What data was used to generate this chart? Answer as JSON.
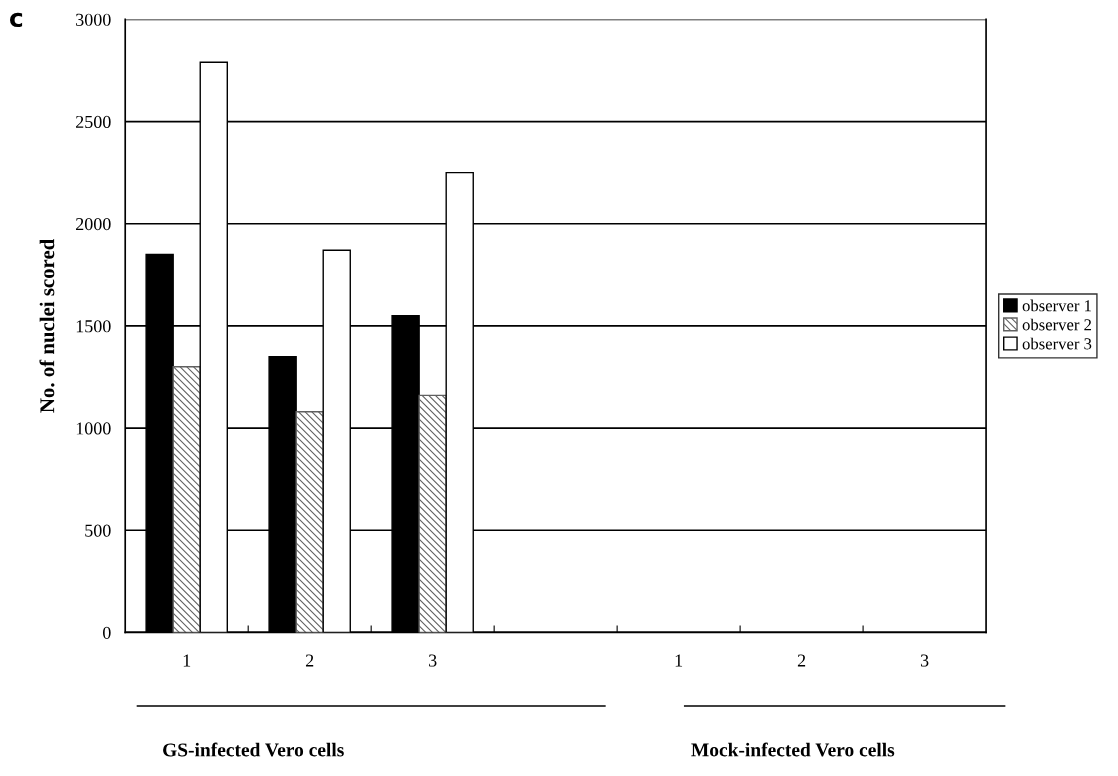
{
  "chart_data": {
    "type": "bar",
    "ylabel": "No. of nuclei scored",
    "categories": [
      "1",
      "2",
      "3",
      null,
      "1",
      "2",
      "3"
    ],
    "series": [
      {
        "name": "observer 1",
        "color": "#000000",
        "values": [
          1850,
          1350,
          1550,
          null,
          null,
          null,
          null
        ]
      },
      {
        "name": "observer 2",
        "color": "#606060",
        "values": [
          1300,
          1080,
          1160,
          null,
          null,
          null,
          null
        ]
      },
      {
        "name": "observer 3",
        "color": "#ffffff",
        "values": [
          2790,
          1870,
          2250,
          null,
          null,
          null,
          null
        ]
      }
    ],
    "ylim": [
      0,
      3000
    ],
    "yticks": [
      0,
      500,
      1000,
      1500,
      2000,
      2500,
      3000
    ],
    "grid": "y",
    "legend": "right",
    "annotations": [
      "c",
      "GS-infected Vero cells",
      "Mock-infected Vero cells"
    ]
  }
}
